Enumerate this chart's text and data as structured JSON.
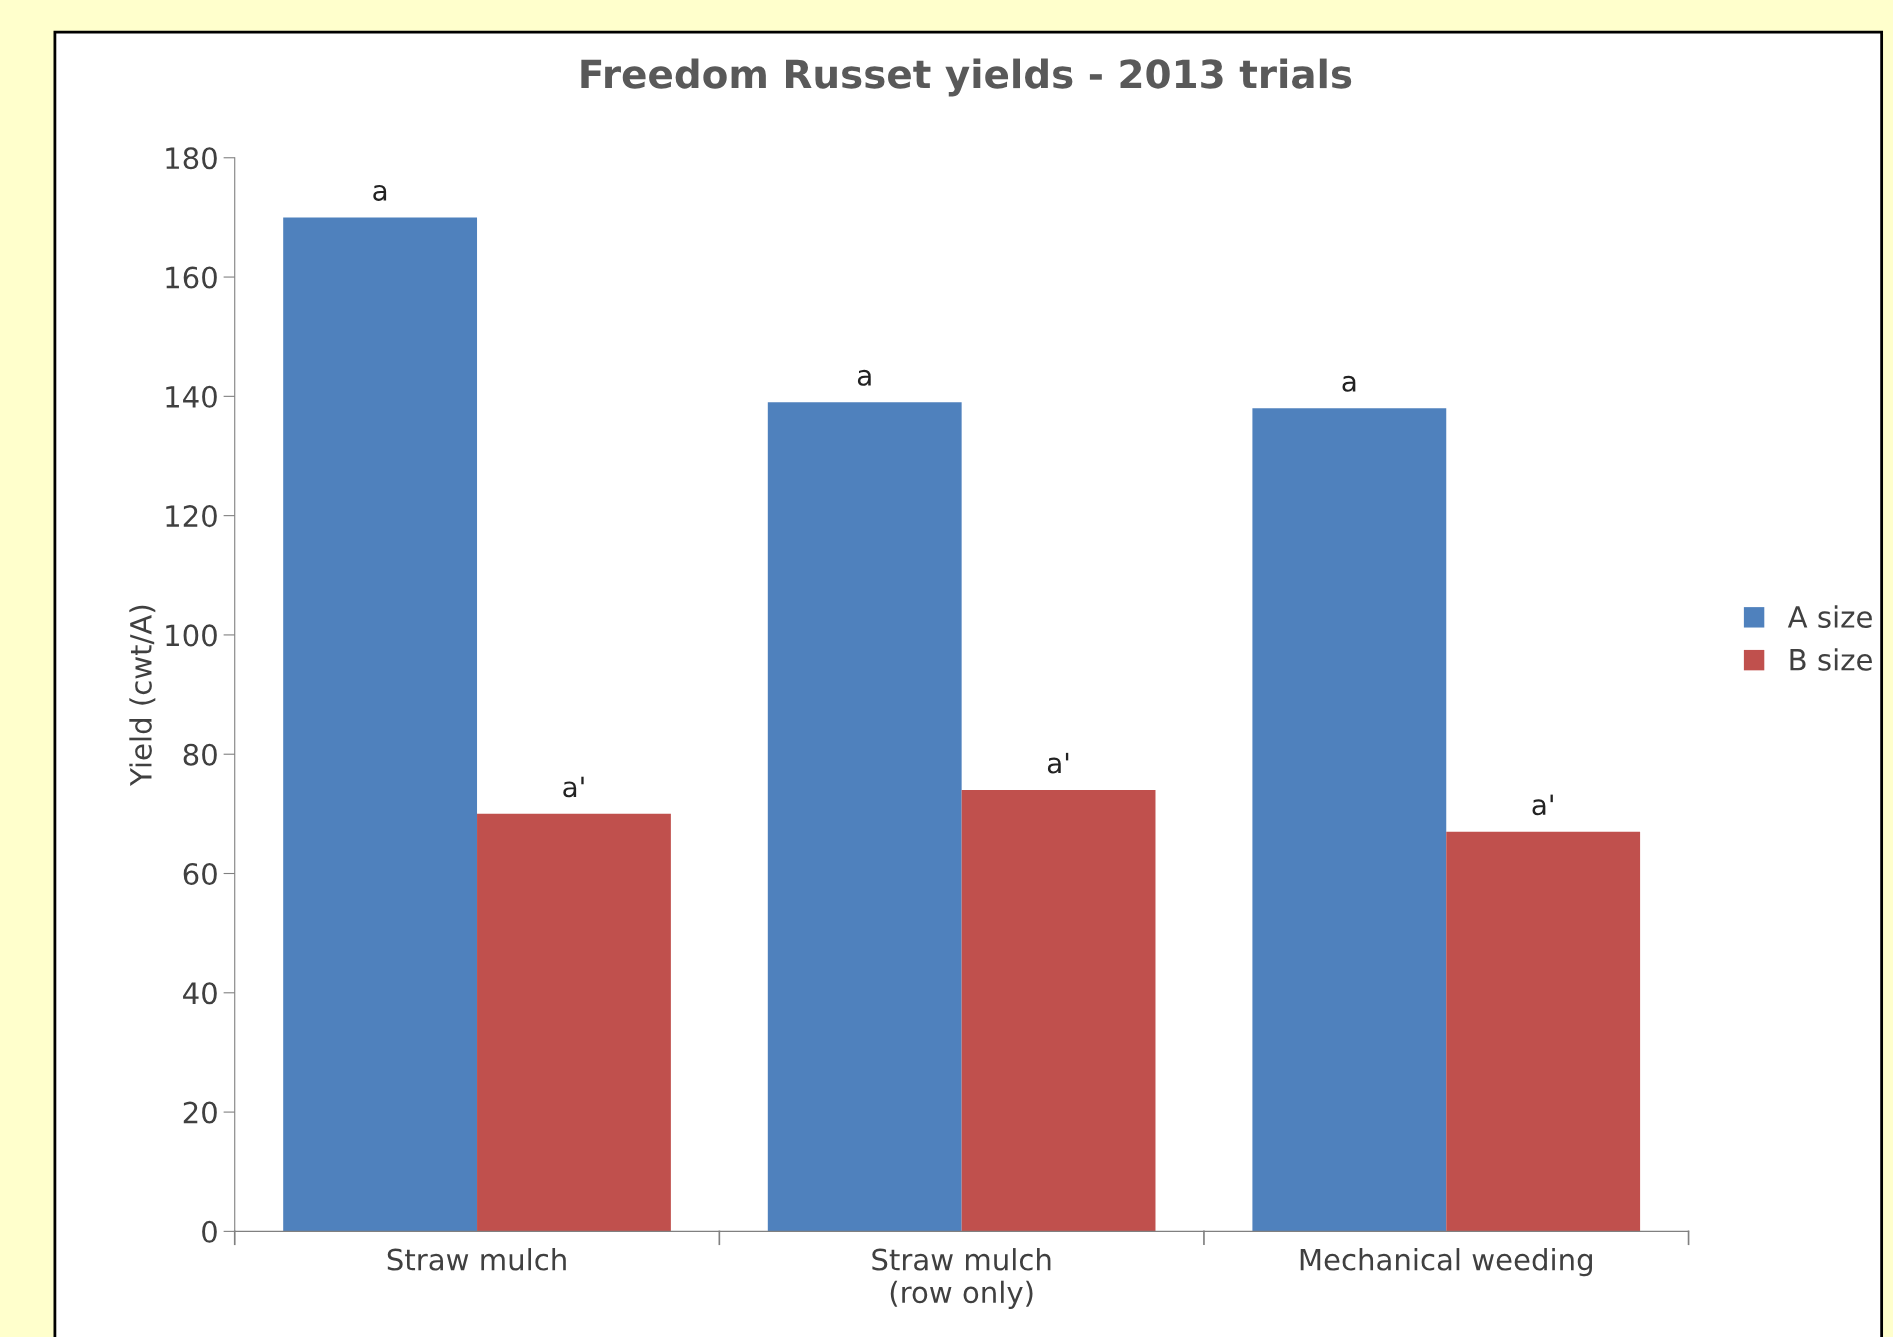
{
  "chart_data": {
    "type": "bar",
    "title": "Freedom Russet yields - 2013 trials",
    "ylabel": "Yield (cwt/A)",
    "categories": [
      "Straw mulch",
      "Straw mulch\n(row only)",
      "Mechanical weeding"
    ],
    "series": [
      {
        "name": "A size",
        "color": "#4f81bd",
        "values": [
          170,
          139,
          138
        ],
        "value_labels": [
          "a",
          "a",
          "a"
        ]
      },
      {
        "name": "B size",
        "color": "#c0504d",
        "values": [
          70,
          74,
          67
        ],
        "value_labels": [
          "a'",
          "a'",
          "a'"
        ]
      }
    ],
    "ylim": [
      0,
      180
    ],
    "yticks": [
      0,
      20,
      40,
      60,
      80,
      100,
      120,
      140,
      160,
      180
    ],
    "grid": false,
    "legend": "right"
  }
}
